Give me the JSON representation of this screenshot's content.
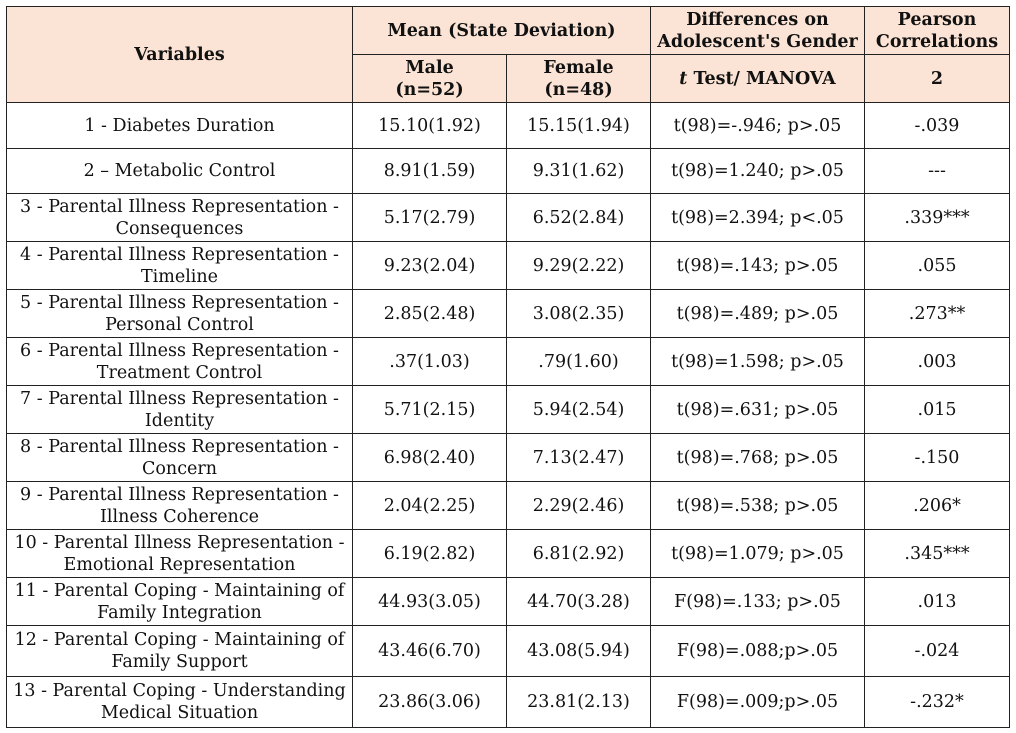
{
  "header": {
    "variables": "Variables",
    "mean_sd": "Mean (State Deviation)",
    "diff_line1": "Differences on",
    "diff_line2": "Adolescent's Gender",
    "pearson_line1": "Pearson",
    "pearson_line2": "Correlations",
    "male_line1": "Male",
    "male_line2": "(n=52)",
    "female_line1": "Female",
    "female_line2": "(n=48)",
    "test_t": "t",
    "test_rest": " Test/ MANOVA",
    "corr_col": "2"
  },
  "rows": [
    {
      "var1": "1 - Diabetes Duration",
      "var2": "",
      "male": "15.10(1.92)",
      "female": "15.15(1.94)",
      "test": "t(98)=-.946; p>.05",
      "corr": "-.039"
    },
    {
      "var1": "2 – Metabolic Control",
      "var2": "",
      "male": "8.91(1.59)",
      "female": "9.31(1.62)",
      "test": "t(98)=1.240; p>.05",
      "corr": "---"
    },
    {
      "var1": "3 - Parental Illness Representation -",
      "var2": "Consequences",
      "male": "5.17(2.79)",
      "female": "6.52(2.84)",
      "test": "t(98)=2.394; p<.05",
      "corr": ".339***"
    },
    {
      "var1": "4 - Parental Illness Representation -",
      "var2": "Timeline",
      "male": "9.23(2.04)",
      "female": "9.29(2.22)",
      "test": "t(98)=.143; p>.05",
      "corr": ".055"
    },
    {
      "var1": "5 - Parental Illness Representation -",
      "var2": "Personal Control",
      "male": "2.85(2.48)",
      "female": "3.08(2.35)",
      "test": "t(98)=.489; p>.05",
      "corr": ".273**"
    },
    {
      "var1": "6 - Parental Illness Representation -",
      "var2": "Treatment Control",
      "male": ".37(1.03)",
      "female": ".79(1.60)",
      "test": "t(98)=1.598; p>.05",
      "corr": ".003"
    },
    {
      "var1": "7 - Parental Illness Representation -",
      "var2": "Identity",
      "male": "5.71(2.15)",
      "female": "5.94(2.54)",
      "test": "t(98)=.631; p>.05",
      "corr": ".015"
    },
    {
      "var1": "8 - Parental Illness Representation -",
      "var2": "Concern",
      "male": "6.98(2.40)",
      "female": "7.13(2.47)",
      "test": "t(98)=.768; p>.05",
      "corr": "-.150"
    },
    {
      "var1": "9 - Parental Illness Representation -",
      "var2": "Illness Coherence",
      "male": "2.04(2.25)",
      "female": "2.29(2.46)",
      "test": "t(98)=.538; p>.05",
      "corr": ".206*"
    },
    {
      "var1": "10 - Parental Illness Representation -",
      "var2": "Emotional Representation",
      "male": "6.19(2.82)",
      "female": "6.81(2.92)",
      "test": "t(98)=1.079; p>.05",
      "corr": ".345***"
    },
    {
      "var1": "11 - Parental Coping - Maintaining of",
      "var2": "Family Integration",
      "male": "44.93(3.05)",
      "female": "44.70(3.28)",
      "test": "F(98)=.133; p>.05",
      "corr": ".013"
    },
    {
      "var1": "12 - Parental Coping - Maintaining of",
      "var2": "Family Support",
      "male": "43.46(6.70)",
      "female": "43.08(5.94)",
      "test": "F(98)=.088;p>.05",
      "corr": "-.024"
    },
    {
      "var1": "13 - Parental Coping - Understanding",
      "var2": "Medical Situation",
      "male": "23.86(3.06)",
      "female": "23.81(2.13)",
      "test": "F(98)=.009;p>.05",
      "corr": "-.232*"
    }
  ]
}
